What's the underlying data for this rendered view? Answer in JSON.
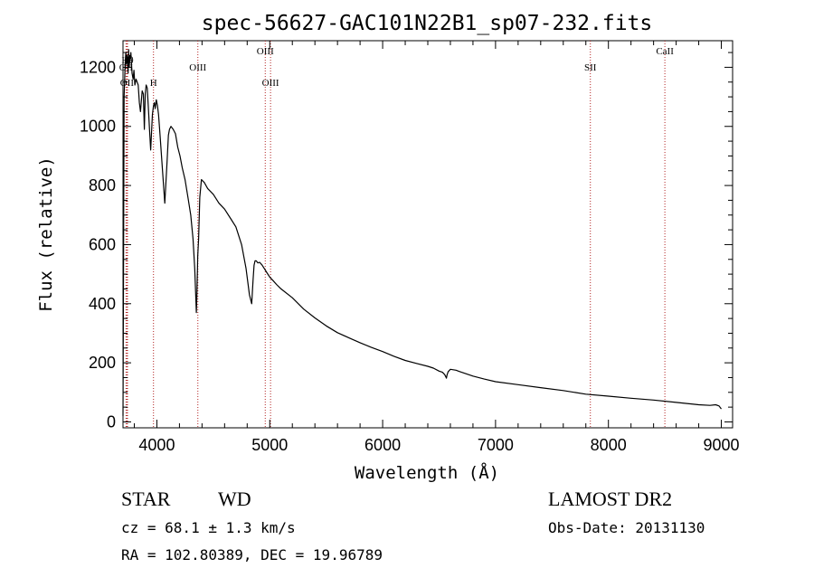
{
  "chart_data": {
    "type": "line",
    "title": "spec-56627-GAC101N22B1_sp07-232.fits",
    "xlabel": "Wavelength (Å)",
    "ylabel": "Flux (relative)",
    "xlim": [
      3700,
      9100
    ],
    "ylim": [
      -20,
      1290
    ],
    "xticks": [
      {
        "value": 4000,
        "label": "4000"
      },
      {
        "value": 5000,
        "label": "5000"
      },
      {
        "value": 6000,
        "label": "6000"
      },
      {
        "value": 7000,
        "label": "7000"
      },
      {
        "value": 8000,
        "label": "8000"
      },
      {
        "value": 9000,
        "label": "9000"
      }
    ],
    "yticks": [
      {
        "value": 0,
        "label": "0"
      },
      {
        "value": 200,
        "label": "200"
      },
      {
        "value": 400,
        "label": "400"
      },
      {
        "value": 600,
        "label": "600"
      },
      {
        "value": 800,
        "label": "800"
      },
      {
        "value": 1000,
        "label": "1000"
      },
      {
        "value": 1200,
        "label": "1200"
      }
    ],
    "series": [
      {
        "color": "#000000",
        "x": [
          3700,
          3705,
          3710,
          3720,
          3725,
          3730,
          3735,
          3740,
          3745,
          3750,
          3755,
          3760,
          3765,
          3770,
          3780,
          3790,
          3797,
          3805,
          3815,
          3825,
          3835,
          3845,
          3855,
          3870,
          3880,
          3889,
          3897,
          3905,
          3915,
          3925,
          3935,
          3945,
          3960,
          3970,
          3978,
          3985,
          3995,
          4005,
          4015,
          4030,
          4050,
          4070,
          4090,
          4102,
          4112,
          4125,
          4145,
          4165,
          4185,
          4205,
          4225,
          4250,
          4275,
          4300,
          4320,
          4335,
          4345,
          4350,
          4355,
          4362,
          4370,
          4380,
          4395,
          4420,
          4450,
          4500,
          4550,
          4600,
          4650,
          4700,
          4750,
          4790,
          4820,
          4840,
          4852,
          4861,
          4870,
          4880,
          4895,
          4910,
          4930,
          4950,
          4975,
          5000,
          5030,
          5060,
          5100,
          5200,
          5300,
          5400,
          5500,
          5600,
          5700,
          5800,
          5900,
          6000,
          6100,
          6200,
          6300,
          6400,
          6450,
          6500,
          6530,
          6550,
          6560,
          6565,
          6570,
          6580,
          6600,
          6650,
          6700,
          6800,
          6900,
          7000,
          7200,
          7400,
          7600,
          7800,
          8000,
          8200,
          8400,
          8600,
          8800,
          8900,
          8950,
          8980,
          9000
        ],
        "y": [
          20,
          540,
          1100,
          1220,
          1250,
          1210,
          1240,
          1230,
          1180,
          1260,
          1200,
          1240,
          1230,
          1250,
          1180,
          1160,
          1190,
          1140,
          1160,
          1150,
          1140,
          1080,
          1050,
          1120,
          1110,
          990,
          1110,
          1140,
          1130,
          1060,
          990,
          920,
          1040,
          1070,
          1080,
          1060,
          1090,
          1070,
          1040,
          960,
          850,
          740,
          880,
          970,
          990,
          1000,
          990,
          975,
          930,
          900,
          860,
          820,
          760,
          700,
          620,
          520,
          420,
          370,
          440,
          560,
          620,
          760,
          820,
          810,
          790,
          770,
          740,
          720,
          690,
          660,
          600,
          520,
          430,
          400,
          480,
          530,
          545,
          545,
          538,
          540,
          532,
          520,
          505,
          490,
          478,
          465,
          450,
          420,
          382,
          352,
          325,
          302,
          285,
          268,
          252,
          238,
          222,
          208,
          198,
          188,
          182,
          172,
          168,
          160,
          152,
          148,
          158,
          170,
          178,
          175,
          168,
          155,
          145,
          136,
          126,
          116,
          106,
          94,
          87,
          80,
          74,
          66,
          58,
          56,
          58,
          54,
          44
        ]
      }
    ],
    "emission_lines": [
      {
        "wavelength": 3727,
        "label": "OII",
        "row": 2
      },
      {
        "wavelength": 3735,
        "label": "OII",
        "row": 4
      },
      {
        "wavelength": 3740,
        "label": "Hθ",
        "row": 1
      },
      {
        "wavelength": 3970,
        "label": "H",
        "row": 4
      },
      {
        "wavelength": 4363,
        "label": "OIII",
        "row": 2
      },
      {
        "wavelength": 4960,
        "label": "OIII",
        "row": 0
      },
      {
        "wavelength": 5007,
        "label": "OIII",
        "row": 3
      },
      {
        "wavelength": 7840,
        "label": "SII",
        "row": 2
      },
      {
        "wavelength": 8500,
        "label": "CaII",
        "row": 0
      }
    ],
    "grid": false,
    "legend": "none"
  },
  "info": {
    "class_label": "STAR",
    "subclass_label": "WD",
    "cz_text": "cz = 68.1 ± 1.3 km/s",
    "radec_text": "RA = 102.80389, DEC =  19.96789",
    "survey_label": "LAMOST DR2",
    "obs_date_text": "Obs-Date: 20131130"
  },
  "colors": {
    "line_marker": "#b22222",
    "spectrum": "#000000",
    "axis": "#000000"
  }
}
